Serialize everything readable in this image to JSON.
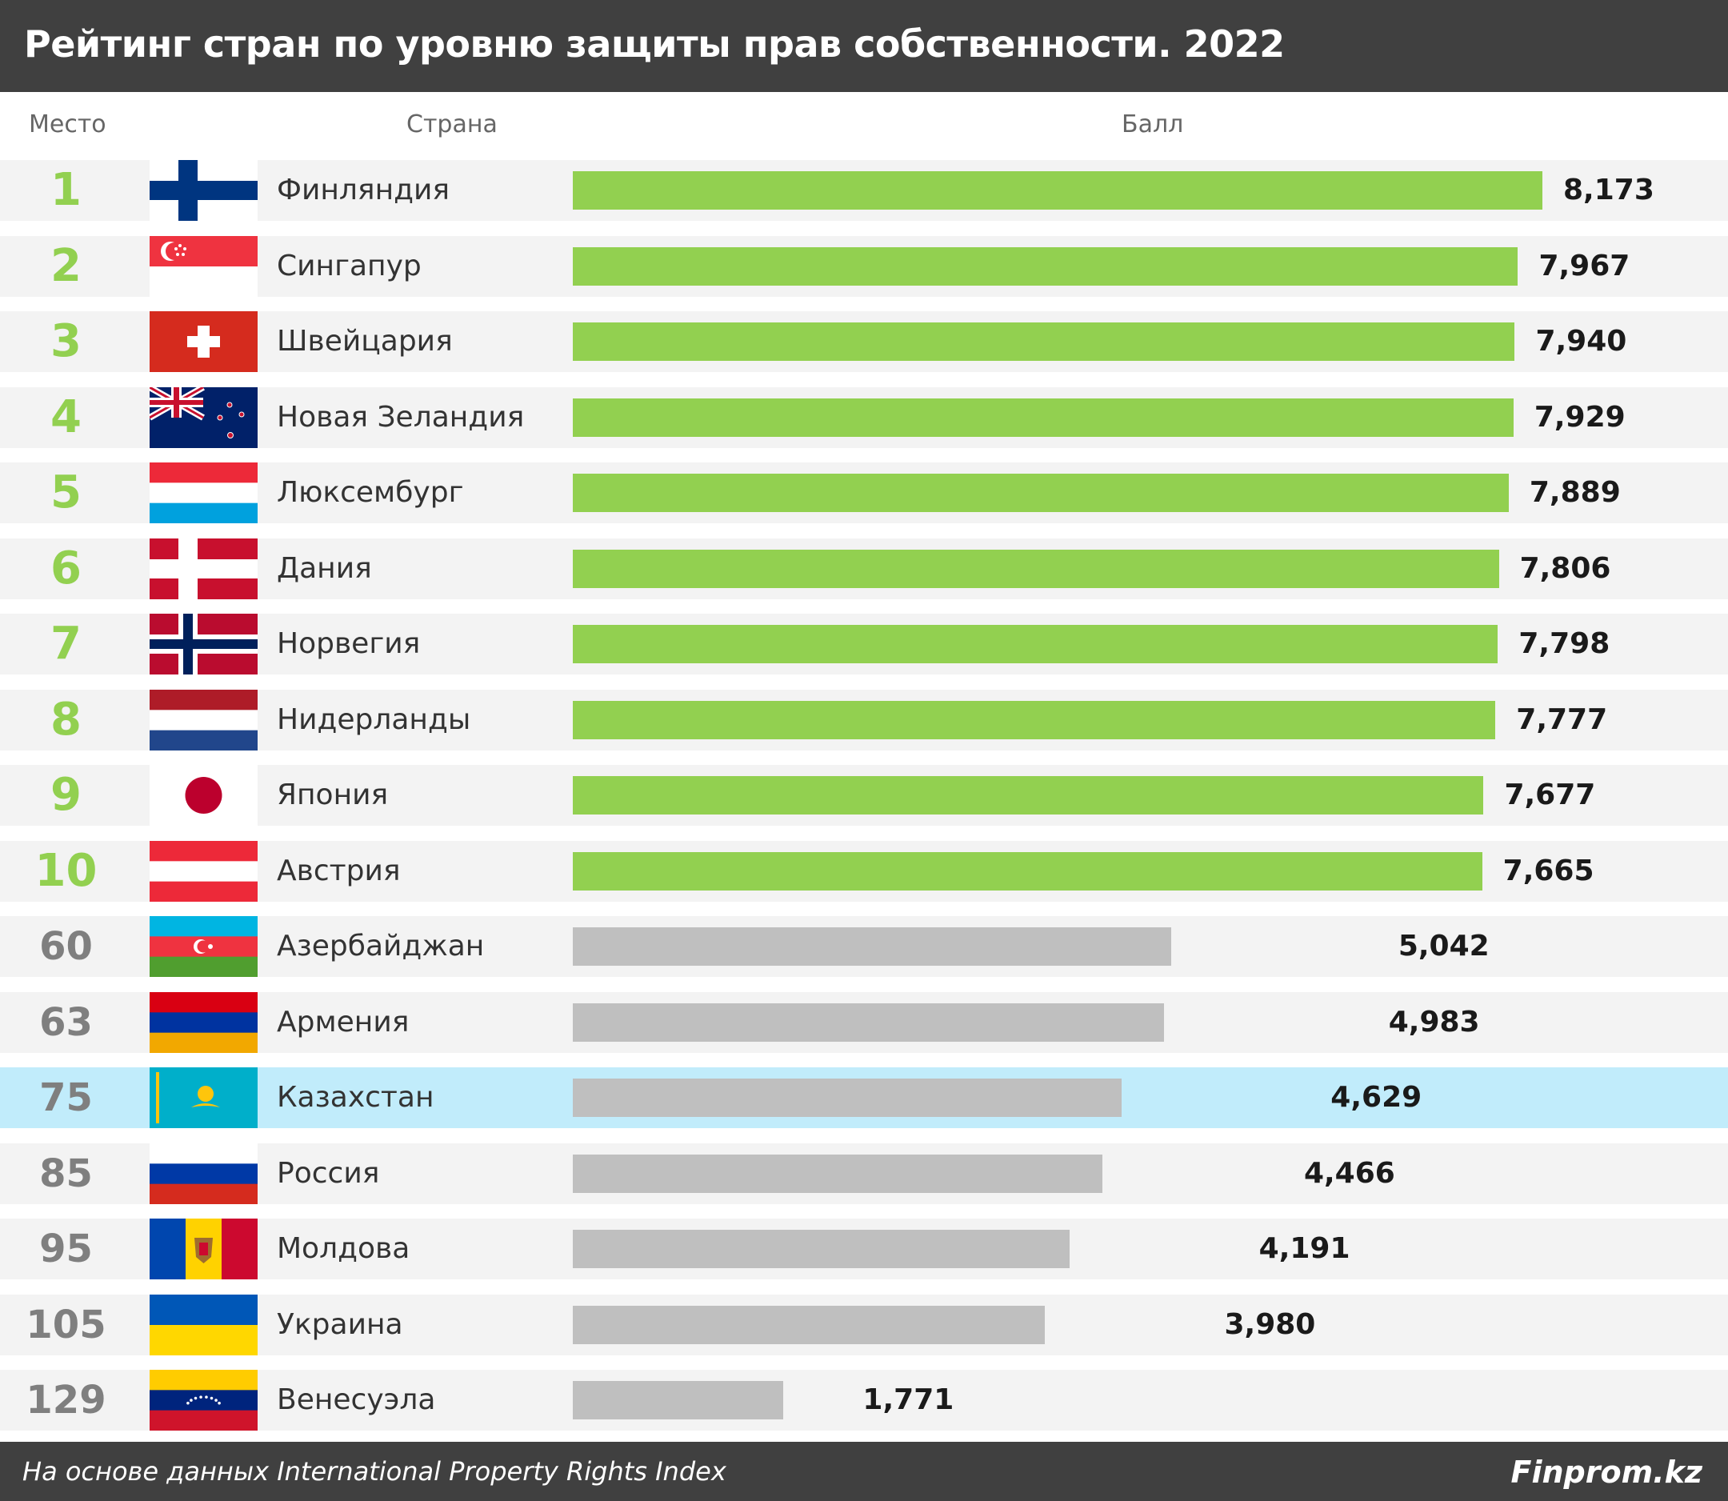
{
  "title": "Рейтинг стран по уровню защиты прав собственности. 2022",
  "headers": {
    "rank": "Место",
    "country": "Страна",
    "score": "Балл"
  },
  "footer": {
    "source": "На основе данных International Property Rights Index",
    "brand": "Finprom.kz"
  },
  "colors": {
    "top": "#92d050",
    "other": "#bfbfbf",
    "highlight": "#c1ecfb",
    "title_bg": "#404040",
    "rank_other": "#7f7f7f"
  },
  "chart_data": {
    "type": "bar",
    "orientation": "horizontal",
    "title": "Рейтинг стран по уровню защиты прав собственности. 2022",
    "xlabel": "Балл",
    "ylabel": "Страна",
    "xlim": [
      0,
      8.173
    ],
    "grid": false,
    "rows": [
      {
        "rank": "1",
        "country": "Финляндия",
        "value": 8.173,
        "label": "8,173",
        "group": "top",
        "flag": "finland-flag-icon"
      },
      {
        "rank": "2",
        "country": "Сингапур",
        "value": 7.967,
        "label": "7,967",
        "group": "top",
        "flag": "singapore-flag-icon"
      },
      {
        "rank": "3",
        "country": "Швейцария",
        "value": 7.94,
        "label": "7,940",
        "group": "top",
        "flag": "switzerland-flag-icon"
      },
      {
        "rank": "4",
        "country": "Новая Зеландия",
        "value": 7.929,
        "label": "7,929",
        "group": "top",
        "flag": "new-zealand-flag-icon"
      },
      {
        "rank": "5",
        "country": "Люксембург",
        "value": 7.889,
        "label": "7,889",
        "group": "top",
        "flag": "luxembourg-flag-icon"
      },
      {
        "rank": "6",
        "country": "Дания",
        "value": 7.806,
        "label": "7,806",
        "group": "top",
        "flag": "denmark-flag-icon"
      },
      {
        "rank": "7",
        "country": "Норвегия",
        "value": 7.798,
        "label": "7,798",
        "group": "top",
        "flag": "norway-flag-icon"
      },
      {
        "rank": "8",
        "country": "Нидерланды",
        "value": 7.777,
        "label": "7,777",
        "group": "top",
        "flag": "netherlands-flag-icon"
      },
      {
        "rank": "9",
        "country": "Япония",
        "value": 7.677,
        "label": "7,677",
        "group": "top",
        "flag": "japan-flag-icon"
      },
      {
        "rank": "10",
        "country": "Австрия",
        "value": 7.665,
        "label": "7,665",
        "group": "top",
        "flag": "austria-flag-icon"
      },
      {
        "rank": "60",
        "country": "Азербайджан",
        "value": 5.042,
        "label": "5,042",
        "group": "other",
        "flag": "azerbaijan-flag-icon"
      },
      {
        "rank": "63",
        "country": "Армения",
        "value": 4.983,
        "label": "4,983",
        "group": "other",
        "flag": "armenia-flag-icon"
      },
      {
        "rank": "75",
        "country": "Казахстан",
        "value": 4.629,
        "label": "4,629",
        "group": "other",
        "flag": "kazakhstan-flag-icon",
        "highlight": true
      },
      {
        "rank": "85",
        "country": "Россия",
        "value": 4.466,
        "label": "4,466",
        "group": "other",
        "flag": "russia-flag-icon"
      },
      {
        "rank": "95",
        "country": "Молдова",
        "value": 4.191,
        "label": "4,191",
        "group": "other",
        "flag": "moldova-flag-icon"
      },
      {
        "rank": "105",
        "country": "Украина",
        "value": 3.98,
        "label": "3,980",
        "group": "other",
        "flag": "ukraine-flag-icon"
      },
      {
        "rank": "129",
        "country": "Венесуэла",
        "value": 1.771,
        "label": "1,771",
        "group": "other",
        "flag": "venezuela-flag-icon"
      }
    ]
  }
}
